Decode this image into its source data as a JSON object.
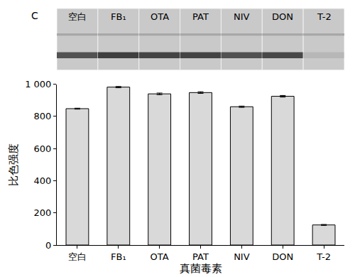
{
  "chart_data": {
    "type": "bar",
    "annotations": [
      "C"
    ],
    "x_label": "真菌毒素",
    "y_label": "比色强度",
    "categories": [
      "空白",
      "FB₁",
      "OTA",
      "PAT",
      "NIV",
      "DON",
      "T-2"
    ],
    "values": [
      848,
      982,
      940,
      948,
      860,
      925,
      125
    ],
    "errors": [
      3,
      4,
      5,
      5,
      4,
      5,
      3
    ],
    "color": "#d9d9d9",
    "ylim": [
      0,
      1000
    ],
    "yticks": [
      0,
      200,
      400,
      600,
      800,
      {
        "value": 1000,
        "label": "1 000"
      }
    ],
    "grid": false
  }
}
